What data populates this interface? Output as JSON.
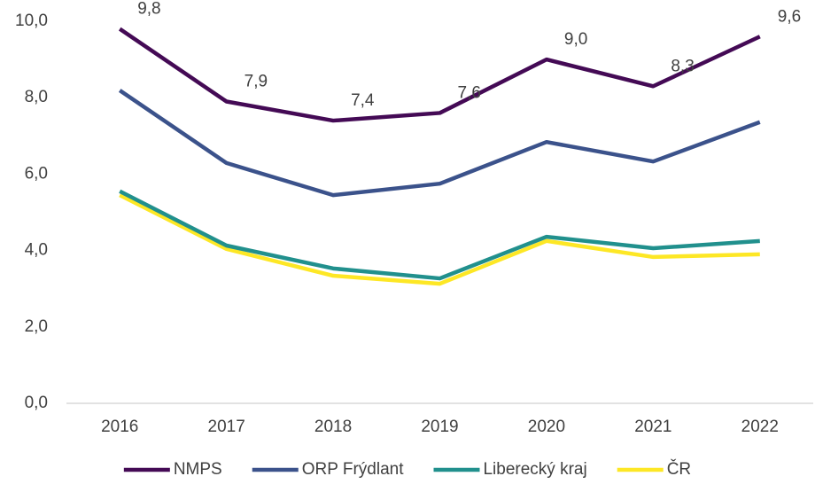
{
  "chart_data": {
    "type": "line",
    "categories": [
      "2016",
      "2017",
      "2018",
      "2019",
      "2020",
      "2021",
      "2022"
    ],
    "series": [
      {
        "name": "NMPS",
        "color": "#440a55",
        "values": [
          9.8,
          7.9,
          7.4,
          7.6,
          9.0,
          8.3,
          9.6
        ],
        "value_labels": [
          "9,8",
          "7,9",
          "7,4",
          "7,6",
          "9,0",
          "8,3",
          "9,6"
        ]
      },
      {
        "name": "ORP Frýdlant",
        "color": "#3b528b",
        "values": [
          8.19,
          6.29,
          5.45,
          5.75,
          6.84,
          6.33,
          7.36
        ]
      },
      {
        "name": "Liberecký kraj",
        "color": "#21908d",
        "values": [
          5.55,
          4.13,
          3.53,
          3.27,
          4.36,
          4.06,
          4.25
        ]
      },
      {
        "name": "ČR",
        "color": "#fde725",
        "values": [
          5.45,
          4.04,
          3.34,
          3.13,
          4.25,
          3.83,
          3.9
        ]
      }
    ],
    "ylim": [
      0,
      10
    ],
    "yticks": [
      {
        "value": 0,
        "label": "0,0"
      },
      {
        "value": 2,
        "label": "2,0"
      },
      {
        "value": 4,
        "label": "4,0"
      },
      {
        "value": 6,
        "label": "6,0"
      },
      {
        "value": 8,
        "label": "8,0"
      },
      {
        "value": 10,
        "label": "10,0"
      }
    ],
    "grid": false,
    "legend": "bottom"
  }
}
